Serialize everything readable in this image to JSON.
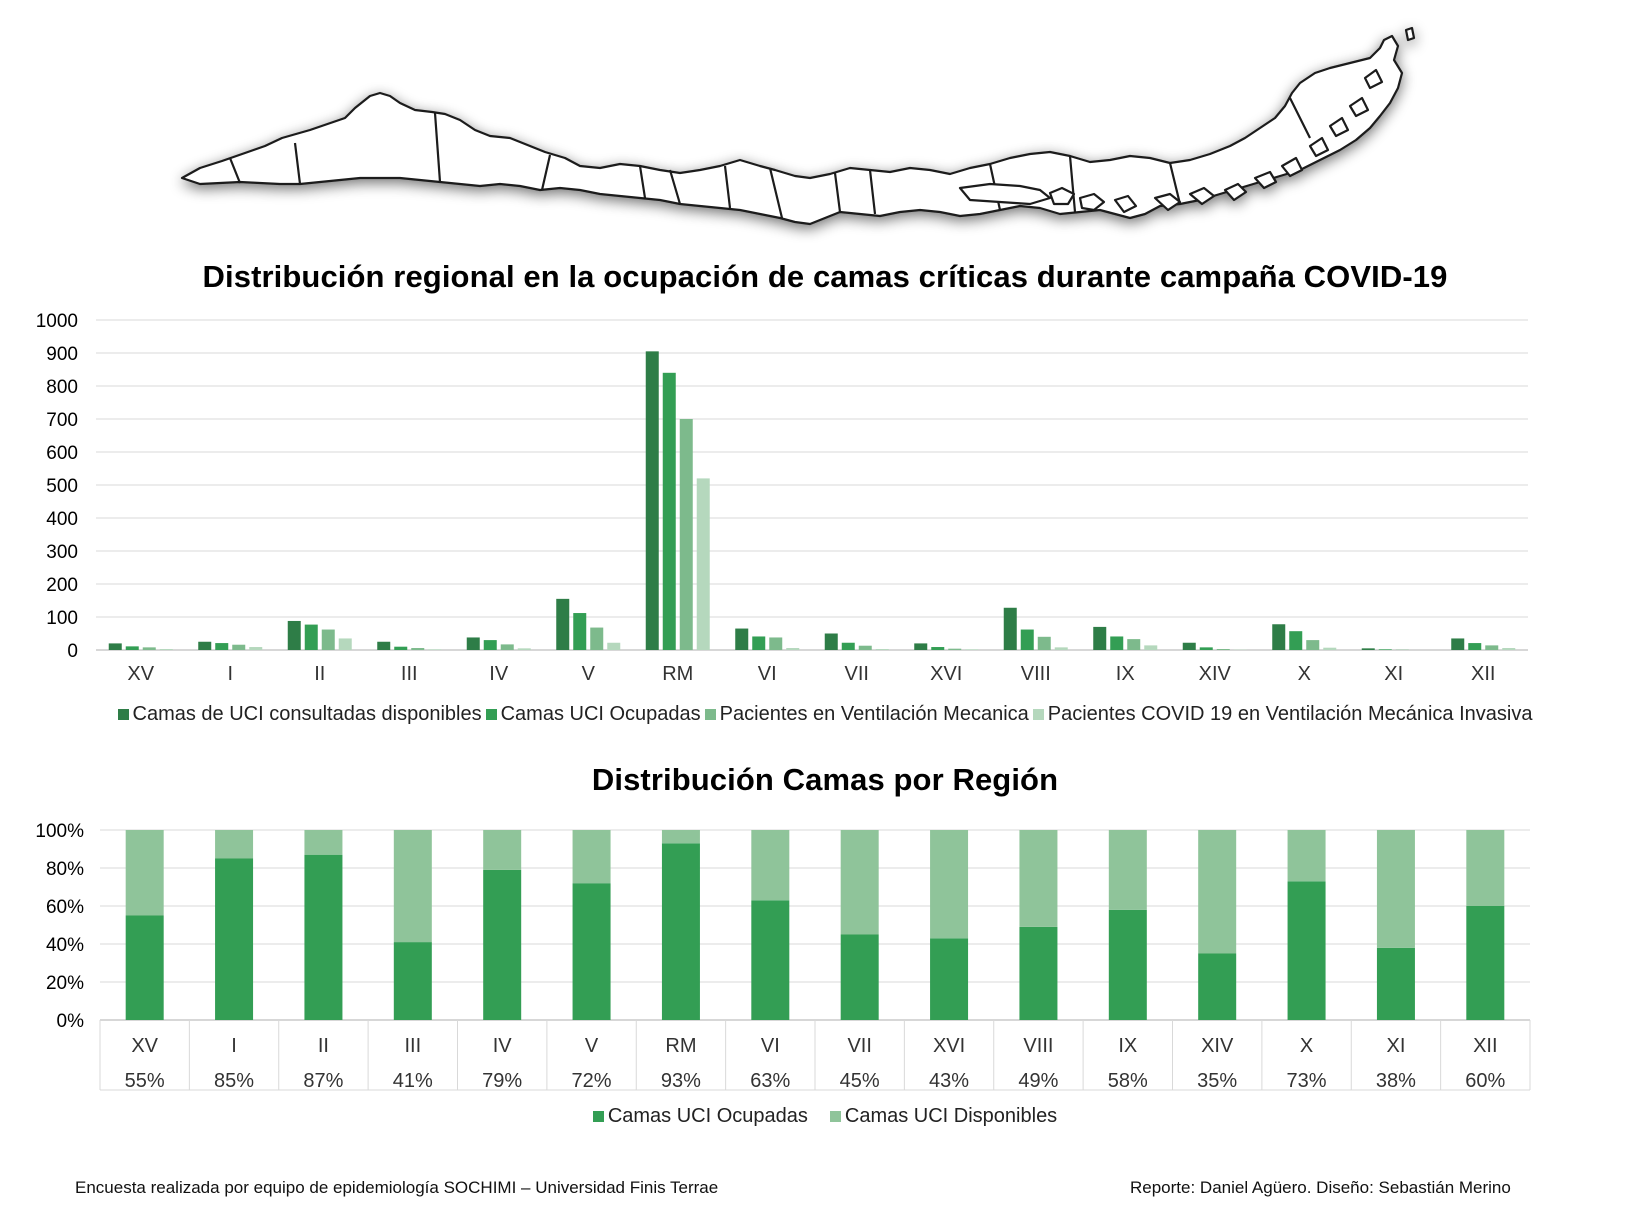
{
  "chart_data": [
    {
      "type": "bar",
      "title": "Distribución regional en la ocupación de camas críticas durante campaña COVID-19",
      "categories": [
        "XV",
        "I",
        "II",
        "III",
        "IV",
        "V",
        "RM",
        "VI",
        "VII",
        "XVI",
        "VIII",
        "IX",
        "XIV",
        "X",
        "XI",
        "XII"
      ],
      "yticks": [
        "0",
        "100",
        "200",
        "300",
        "400",
        "500",
        "600",
        "700",
        "800",
        "900",
        "1000"
      ],
      "ylim": [
        0,
        1000
      ],
      "grid": true,
      "legend_position": "bottom",
      "series": [
        {
          "name": "Camas de UCI consultadas disponibles",
          "color": "#2e7d47",
          "values": [
            20,
            25,
            88,
            25,
            38,
            155,
            905,
            65,
            50,
            20,
            128,
            70,
            22,
            78,
            5,
            35
          ]
        },
        {
          "name": "Camas UCI Ocupadas",
          "color": "#339e54",
          "values": [
            11,
            21,
            77,
            10,
            30,
            112,
            840,
            41,
            22,
            9,
            62,
            41,
            8,
            57,
            2,
            21
          ]
        },
        {
          "name": "Pacientes en Ventilación Mecanica",
          "color": "#7dba8c",
          "values": [
            8,
            16,
            62,
            6,
            17,
            68,
            700,
            38,
            13,
            4,
            40,
            33,
            3,
            30,
            1,
            14
          ]
        },
        {
          "name": "Pacientes COVID 19 en Ventilación Mecánica Invasiva",
          "color": "#b5d8bd",
          "values": [
            3,
            9,
            35,
            2,
            5,
            22,
            520,
            6,
            3,
            2,
            8,
            14,
            1,
            7,
            0,
            6
          ]
        }
      ]
    },
    {
      "type": "bar",
      "stacked": "percent",
      "title": "Distribución Camas por Región",
      "categories": [
        "XV",
        "I",
        "II",
        "III",
        "IV",
        "V",
        "RM",
        "VI",
        "VII",
        "XVI",
        "VIII",
        "IX",
        "XIV",
        "X",
        "XI",
        "XII"
      ],
      "yticks": [
        "0%",
        "20%",
        "40%",
        "60%",
        "80%",
        "100%"
      ],
      "ylim": [
        0,
        100
      ],
      "grid": true,
      "legend_position": "bottom",
      "series": [
        {
          "name": "Camas UCI Ocupadas",
          "color": "#339e54",
          "values": [
            55,
            85,
            87,
            41,
            79,
            72,
            93,
            63,
            45,
            43,
            49,
            58,
            35,
            73,
            38,
            60
          ]
        },
        {
          "name": "Camas UCI Disponibles",
          "color": "#8fc49a",
          "values": [
            45,
            15,
            13,
            59,
            21,
            28,
            7,
            37,
            55,
            57,
            51,
            42,
            65,
            27,
            62,
            40
          ]
        }
      ],
      "table_labels": [
        "55%",
        "85%",
        "87%",
        "41%",
        "79%",
        "72%",
        "93%",
        "63%",
        "45%",
        "43%",
        "49%",
        "58%",
        "35%",
        "73%",
        "38%",
        "60%"
      ]
    }
  ],
  "footer": {
    "left": "Encuesta realizada por equipo de epidemiología SOCHIMI – Universidad Finis Terrae",
    "right": "Reporte: Daniel Agüero. Diseño: Sebastián Merino"
  }
}
